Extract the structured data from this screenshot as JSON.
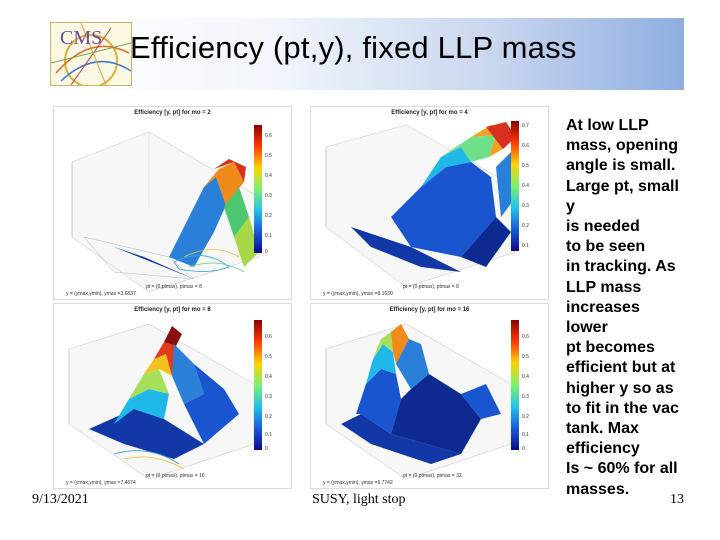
{
  "slide": {
    "title": "Efficiency (pt,y), fixed LLP mass",
    "logo_text": "CMS",
    "side_text": "At low LLP\nmass, opening\nangle is small.\nLarge pt, small\ny\n is needed\nto be seen\nin tracking. As\nLLP mass\nincreases\nlower\npt becomes\nefficient but at\nhigher y so as\nto fit in the vac\ntank. Max\nefficiency\nIs ~ 60% for all\nmasses.",
    "footer_date": "9/13/2021",
    "footer_center": "SUSY, light stop",
    "page_number": "13"
  },
  "plots": [
    {
      "title": "Efficiency [y, pt] for mo = 2",
      "xlabel": "pt = (0,ptmax), ptmax = 8",
      "ylabel": "y = (ymax,ymin), ymax =3.6837",
      "ticks": [
        "0.6",
        "0.5",
        "0.4",
        "0.3",
        "0.2",
        "0.1",
        "0"
      ]
    },
    {
      "title": "Efficiency [y, pt] for mo = 4",
      "xlabel": "pt = (0,ptmax), ptmax = 8",
      "ylabel": "y = (ymax,ymin), ymax =8.1630",
      "ticks": [
        "0.7",
        "0.6",
        "0.5",
        "0.4",
        "0.3",
        "0.2",
        "0.1"
      ]
    },
    {
      "title": "Efficiency [y, pt] for mo = 8",
      "xlabel": "pt = (0,ptmax), ptmax = 16",
      "ylabel": "y = (ymax,ymin), ymax =7.4674",
      "ticks": [
        "0.6",
        "0.5",
        "0.4",
        "0.3",
        "0.2",
        "0.1",
        "0"
      ]
    },
    {
      "title": "Efficiency [y, pt] for mo = 16",
      "xlabel": "pt = (0,ptmax), ptmax = 32",
      "ylabel": "y = (ymax,ymin), ymax =6.7742",
      "ticks": [
        "0.6",
        "0.5",
        "0.4",
        "0.3",
        "0.2",
        "0.1",
        "0"
      ]
    }
  ]
}
